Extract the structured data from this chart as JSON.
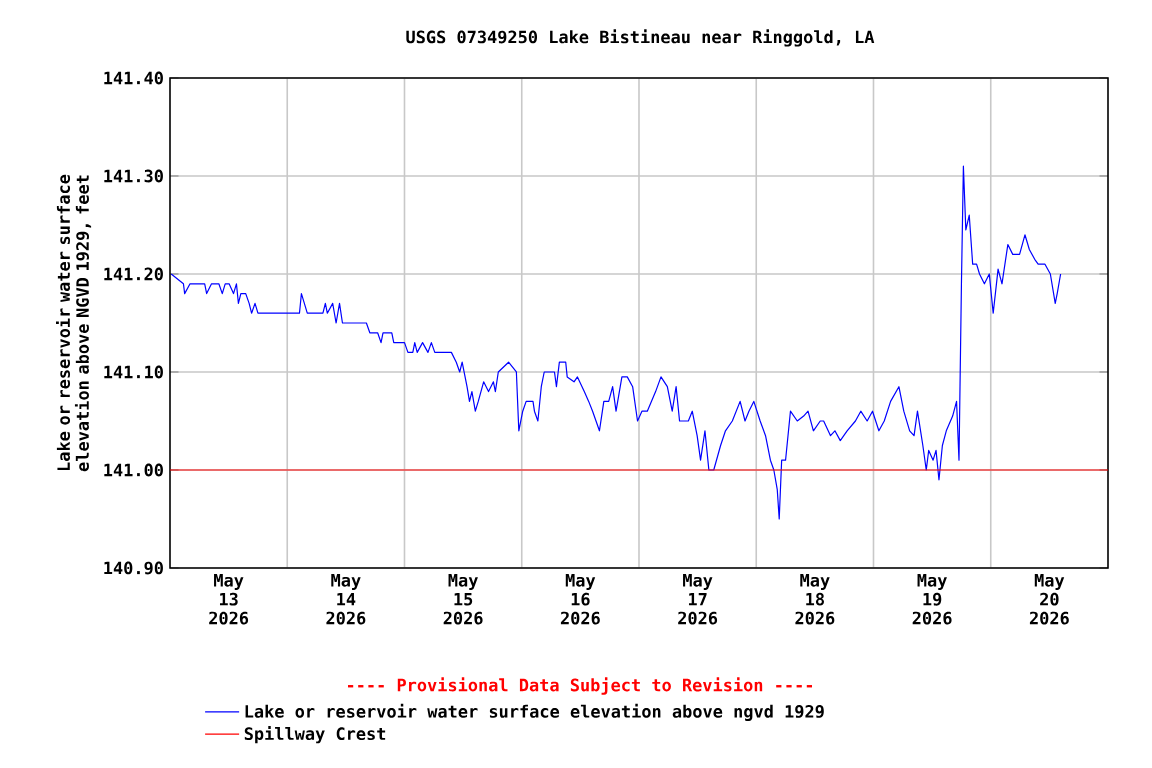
{
  "chart_data": {
    "type": "line",
    "title": "USGS 07349250 Lake Bistineau near Ringgold, LA",
    "ylabel": "Lake or reservoir water surface elevation above NGVD 1929, feet",
    "annotations": [
      "---- Provisional Data Subject to Revision ----"
    ],
    "x": [
      "2026-05-13T00:15",
      "2026-05-13T02:45",
      "2026-05-13T03:00",
      "2026-05-13T04:06",
      "2026-05-13T07:06",
      "2026-05-13T07:30",
      "2026-05-13T08:30",
      "2026-05-13T10:00",
      "2026-05-13T10:42",
      "2026-05-13T11:18",
      "2026-05-13T12:06",
      "2026-05-13T13:00",
      "2026-05-13T13:36",
      "2026-05-13T14:00",
      "2026-05-13T14:30",
      "2026-05-13T15:30",
      "2026-05-13T16:12",
      "2026-05-13T16:42",
      "2026-05-13T17:24",
      "2026-05-13T18:00",
      "2026-05-14T02:30",
      "2026-05-14T02:54",
      "2026-05-14T03:30",
      "2026-05-14T04:06",
      "2026-05-14T07:18",
      "2026-05-14T07:48",
      "2026-05-14T08:12",
      "2026-05-14T09:18",
      "2026-05-14T10:00",
      "2026-05-14T10:42",
      "2026-05-14T11:18",
      "2026-05-14T11:48",
      "2026-05-14T16:12",
      "2026-05-14T16:54",
      "2026-05-14T18:30",
      "2026-05-14T19:12",
      "2026-05-14T19:36",
      "2026-05-14T21:24",
      "2026-05-14T21:48",
      "2026-05-15T00:00",
      "2026-05-15T00:42",
      "2026-05-15T01:42",
      "2026-05-15T02:06",
      "2026-05-15T02:36",
      "2026-05-15T03:42",
      "2026-05-15T04:48",
      "2026-05-15T05:30",
      "2026-05-15T06:12",
      "2026-05-15T09:36",
      "2026-05-15T10:36",
      "2026-05-15T11:18",
      "2026-05-15T11:48",
      "2026-05-15T12:48",
      "2026-05-15T13:18",
      "2026-05-15T13:48",
      "2026-05-15T14:30",
      "2026-05-15T15:06",
      "2026-05-15T16:12",
      "2026-05-15T17:12",
      "2026-05-15T18:12",
      "2026-05-15T18:36",
      "2026-05-15T19:12",
      "2026-05-15T21:18",
      "2026-05-15T22:54",
      "2026-05-15T23:24",
      "2026-05-16T00:12",
      "2026-05-16T00:54",
      "2026-05-16T02:18",
      "2026-05-16T02:36",
      "2026-05-16T03:18",
      "2026-05-16T04:00",
      "2026-05-16T04:36",
      "2026-05-16T06:00",
      "2026-05-16T06:42",
      "2026-05-16T07:06",
      "2026-05-16T07:42",
      "2026-05-16T09:00",
      "2026-05-16T09:18",
      "2026-05-16T10:42",
      "2026-05-16T11:24",
      "2026-05-16T12:48",
      "2026-05-16T13:42",
      "2026-05-16T14:30",
      "2026-05-16T15:54",
      "2026-05-16T16:48",
      "2026-05-16T17:48",
      "2026-05-16T18:36",
      "2026-05-16T19:18",
      "2026-05-16T20:30",
      "2026-05-16T21:36",
      "2026-05-16T22:42",
      "2026-05-16T23:42",
      "2026-05-17T00:36",
      "2026-05-17T01:42",
      "2026-05-17T03:24",
      "2026-05-17T04:30",
      "2026-05-17T05:48",
      "2026-05-17T06:48",
      "2026-05-17T07:36",
      "2026-05-17T08:18",
      "2026-05-17T10:06",
      "2026-05-17T10:54",
      "2026-05-17T11:54",
      "2026-05-17T12:36",
      "2026-05-17T13:30",
      "2026-05-17T14:18",
      "2026-05-17T15:18",
      "2026-05-17T16:42",
      "2026-05-17T17:42",
      "2026-05-17T19:06",
      "2026-05-17T20:42",
      "2026-05-17T21:42",
      "2026-05-17T22:30",
      "2026-05-17T23:30",
      "2026-05-18T00:48",
      "2026-05-18T01:54",
      "2026-05-18T02:54",
      "2026-05-18T03:36",
      "2026-05-18T04:18",
      "2026-05-18T04:42",
      "2026-05-18T05:12",
      "2026-05-18T06:00",
      "2026-05-18T07:00",
      "2026-05-18T08:24",
      "2026-05-18T09:42",
      "2026-05-18T10:36",
      "2026-05-18T11:42",
      "2026-05-18T13:06",
      "2026-05-18T13:48",
      "2026-05-18T15:12",
      "2026-05-18T16:06",
      "2026-05-18T17:12",
      "2026-05-18T18:36",
      "2026-05-18T20:18",
      "2026-05-18T21:24",
      "2026-05-18T22:42",
      "2026-05-18T23:48",
      "2026-05-19T01:06",
      "2026-05-19T02:12",
      "2026-05-19T03:30",
      "2026-05-19T05:12",
      "2026-05-19T06:12",
      "2026-05-19T07:24",
      "2026-05-19T08:18",
      "2026-05-19T09:00",
      "2026-05-19T10:06",
      "2026-05-19T10:48",
      "2026-05-19T11:18",
      "2026-05-19T12:12",
      "2026-05-19T12:48",
      "2026-05-19T13:24",
      "2026-05-19T14:06",
      "2026-05-19T14:54",
      "2026-05-19T16:12",
      "2026-05-19T17:00",
      "2026-05-19T17:30",
      "2026-05-19T18:00",
      "2026-05-19T18:24",
      "2026-05-19T18:54",
      "2026-05-19T19:36",
      "2026-05-19T20:18",
      "2026-05-19T21:06",
      "2026-05-19T21:42",
      "2026-05-19T22:42",
      "2026-05-19T23:42",
      "2026-05-20T00:30",
      "2026-05-20T01:30",
      "2026-05-20T02:18",
      "2026-05-20T03:30",
      "2026-05-20T04:30",
      "2026-05-20T05:54",
      "2026-05-20T07:00",
      "2026-05-20T07:54",
      "2026-05-20T09:00",
      "2026-05-20T09:42",
      "2026-05-20T11:06",
      "2026-05-20T12:12",
      "2026-05-20T13:12",
      "2026-05-20T13:36",
      "2026-05-20T14:18"
    ],
    "series": [
      {
        "name": "Lake or reservoir water surface elevation above ngvd 1929",
        "color": "#0000ff",
        "values": [
          141.2,
          141.19,
          141.18,
          141.19,
          141.19,
          141.18,
          141.19,
          141.19,
          141.18,
          141.19,
          141.19,
          141.18,
          141.19,
          141.17,
          141.18,
          141.18,
          141.17,
          141.16,
          141.17,
          141.16,
          141.16,
          141.18,
          141.17,
          141.16,
          141.16,
          141.17,
          141.16,
          141.17,
          141.15,
          141.17,
          141.15,
          141.15,
          141.15,
          141.14,
          141.14,
          141.13,
          141.14,
          141.14,
          141.13,
          141.13,
          141.12,
          141.12,
          141.13,
          141.12,
          141.13,
          141.12,
          141.13,
          141.12,
          141.12,
          141.11,
          141.1,
          141.11,
          141.085,
          141.07,
          141.08,
          141.06,
          141.07,
          141.09,
          141.08,
          141.09,
          141.08,
          141.1,
          141.11,
          141.1,
          141.04,
          141.06,
          141.07,
          141.07,
          141.06,
          141.05,
          141.085,
          141.1,
          141.1,
          141.1,
          141.085,
          141.11,
          141.11,
          141.095,
          141.09,
          141.095,
          141.08,
          141.07,
          141.06,
          141.04,
          141.07,
          141.07,
          141.085,
          141.06,
          141.095,
          141.095,
          141.085,
          141.05,
          141.06,
          141.06,
          141.08,
          141.095,
          141.085,
          141.06,
          141.085,
          141.05,
          141.05,
          141.06,
          141.035,
          141.01,
          141.04,
          141.0,
          141.0,
          141.025,
          141.04,
          141.05,
          141.07,
          141.05,
          141.06,
          141.07,
          141.05,
          141.035,
          141.01,
          141.0,
          140.98,
          140.95,
          141.01,
          141.01,
          141.06,
          141.05,
          141.055,
          141.06,
          141.04,
          141.05,
          141.05,
          141.035,
          141.04,
          141.03,
          141.04,
          141.05,
          141.06,
          141.05,
          141.06,
          141.04,
          141.05,
          141.07,
          141.085,
          141.06,
          141.04,
          141.035,
          141.06,
          141.025,
          141.0,
          141.02,
          141.01,
          141.02,
          140.99,
          141.025,
          141.04,
          141.055,
          141.07,
          141.01,
          141.19,
          141.31,
          141.245,
          141.26,
          141.21,
          141.21,
          141.2,
          141.19,
          141.2,
          141.16,
          141.205,
          141.19,
          141.23,
          141.22,
          141.22,
          141.24,
          141.225,
          141.215,
          141.21,
          141.21,
          141.2,
          141.17,
          141.18,
          141.2
        ]
      }
    ],
    "ref_lines": [
      {
        "axis": "y",
        "value": 141.0,
        "label": "Spillway Crest",
        "color": "#ff0000"
      }
    ],
    "xlim": [
      "2026-05-13",
      "2026-05-21"
    ],
    "xticks": [
      {
        "value": "2026-05-13T12:00",
        "label": "May 13 2026"
      },
      {
        "value": "2026-05-14T12:00",
        "label": "May 14 2026"
      },
      {
        "value": "2026-05-15T12:00",
        "label": "May 15 2026"
      },
      {
        "value": "2026-05-16T12:00",
        "label": "May 16 2026"
      },
      {
        "value": "2026-05-17T12:00",
        "label": "May 17 2026"
      },
      {
        "value": "2026-05-18T12:00",
        "label": "May 18 2026"
      },
      {
        "value": "2026-05-19T12:00",
        "label": "May 19 2026"
      },
      {
        "value": "2026-05-20T12:00",
        "label": "May 20 2026"
      },
      {
        "value": "2026-05-14",
        "label": null
      },
      {
        "value": "2026-05-15",
        "label": null
      },
      {
        "value": "2026-05-16",
        "label": null
      },
      {
        "value": "2026-05-17",
        "label": null
      },
      {
        "value": "2026-05-18",
        "label": null
      },
      {
        "value": "2026-05-19",
        "label": null
      },
      {
        "value": "2026-05-20",
        "label": null
      }
    ],
    "ylim": [
      140.9,
      141.4
    ],
    "yticks": [
      {
        "value": 140.9,
        "label": "140.90"
      },
      {
        "value": 141.0,
        "label": "141.00"
      },
      {
        "value": 141.1,
        "label": "141.10"
      },
      {
        "value": 141.2,
        "label": "141.20"
      },
      {
        "value": 141.3,
        "label": "141.30"
      },
      {
        "value": 141.4,
        "label": "141.40"
      }
    ],
    "grid": true,
    "legend": "bottom",
    "line_style": "solid"
  }
}
